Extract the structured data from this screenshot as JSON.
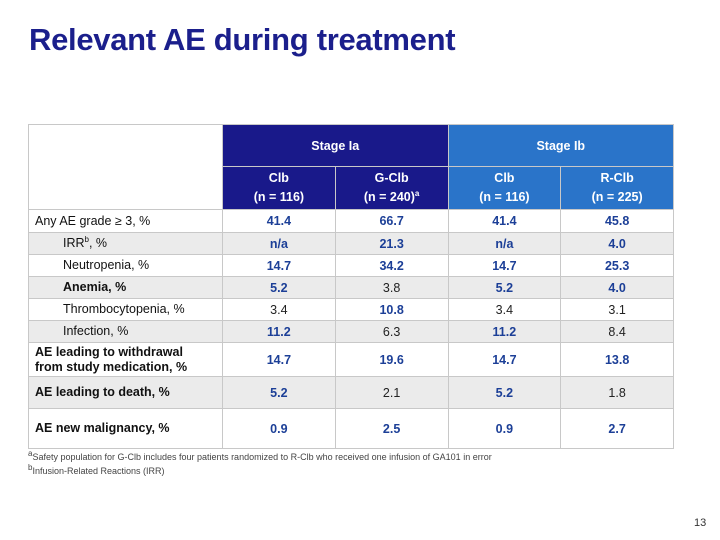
{
  "slide": {
    "title": "Relevant AE during treatment",
    "page_number": "13"
  },
  "table": {
    "stage_headers": [
      "Stage Ia",
      "Stage Ib"
    ],
    "columns": [
      {
        "name": "Clb",
        "n": "(n = 116)"
      },
      {
        "name": "G-Clb",
        "n": "(n = 240)",
        "footnote": "a"
      },
      {
        "name": "Clb",
        "n": "(n = 116)"
      },
      {
        "name": "R-Clb",
        "n": "(n = 225)"
      }
    ],
    "rows": [
      {
        "label": "Any AE grade ≥ 3, %",
        "values": [
          "41.4",
          "66.7",
          "41.4",
          "45.8"
        ]
      },
      {
        "label": "IRR",
        "label_sup": "b",
        "label_suffix": ", %",
        "values": [
          "n/a",
          "21.3",
          "n/a",
          "4.0"
        ]
      },
      {
        "label": "Neutropenia, %",
        "values": [
          "14.7",
          "34.2",
          "14.7",
          "25.3"
        ]
      },
      {
        "label": "Anemia, %",
        "values": [
          "5.2",
          "3.8",
          "5.2",
          "4.0"
        ]
      },
      {
        "label": "Thrombocytopenia, %",
        "values": [
          "3.4",
          "10.8",
          "3.4",
          "3.1"
        ]
      },
      {
        "label": "Infection, %",
        "values": [
          "11.2",
          "6.3",
          "11.2",
          "8.4"
        ]
      },
      {
        "label_line1": "AE leading to withdrawal",
        "label_line2": "from study medication, %",
        "values": [
          "14.7",
          "19.6",
          "14.7",
          "13.8"
        ]
      },
      {
        "label": "AE leading to death, %",
        "values": [
          "5.2",
          "2.1",
          "5.2",
          "1.8"
        ]
      },
      {
        "label": "AE new malignancy, %",
        "values": [
          "0.9",
          "2.5",
          "0.9",
          "2.7"
        ]
      }
    ]
  },
  "footnotes": {
    "a": "Safety population for G-Clb includes four patients randomized to R-Clb who received one infusion of GA101 in error",
    "a_marker": "a",
    "b": "Infusion-Related Reactions (IRR)",
    "b_marker": "b"
  },
  "colors": {
    "title": "#1b1f8c",
    "stage_ia": "#19198a",
    "stage_ib": "#2a74c9",
    "value_blue": "#1c3f97",
    "row_shade": "#ebebeb"
  }
}
